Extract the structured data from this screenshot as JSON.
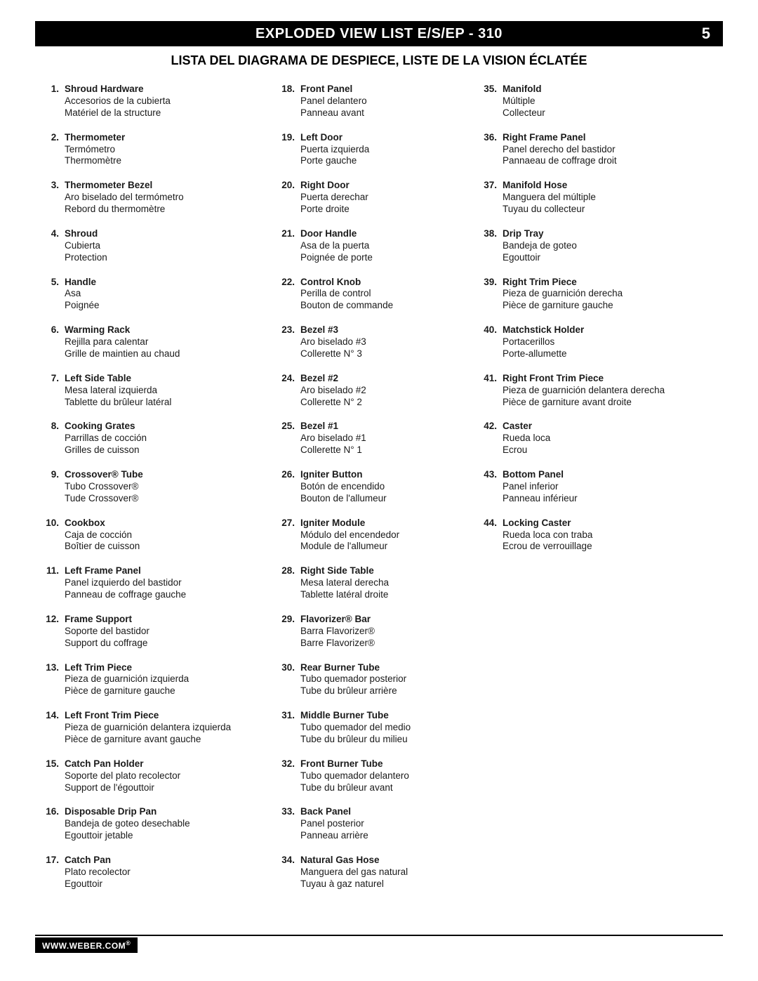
{
  "header": {
    "title": "EXPLODED VIEW LIST  E/S/EP - 310",
    "page_number": "5"
  },
  "subtitle": "LISTA DEL DIAGRAMA DE DESPIECE, LISTE DE LA VISION ÉCLATÉE",
  "footer": "WWW.WEBER.COM",
  "footer_mark": "®",
  "columns": [
    [
      {
        "n": "1.",
        "name": "Shroud Hardware",
        "es": "Accesorios de la cubierta",
        "fr": "Matériel de la structure"
      },
      {
        "n": "2.",
        "name": "Thermometer",
        "es": "Termómetro",
        "fr": "Thermomètre"
      },
      {
        "n": "3.",
        "name": "Thermometer Bezel",
        "es": "Aro biselado del termómetro",
        "fr": "Rebord du thermomètre"
      },
      {
        "n": "4.",
        "name": "Shroud",
        "es": "Cubierta",
        "fr": "Protection"
      },
      {
        "n": "5.",
        "name": "Handle",
        "es": "Asa",
        "fr": "Poignée"
      },
      {
        "n": "6.",
        "name": "Warming Rack",
        "es": "Rejilla para calentar",
        "fr": "Grille de maintien au chaud"
      },
      {
        "n": "7.",
        "name": "Left Side Table",
        "es": "Mesa lateral izquierda",
        "fr": "Tablette du brûleur latéral"
      },
      {
        "n": "8.",
        "name": "Cooking Grates",
        "es": "Parrillas de cocción",
        "fr": "Grilles de cuisson"
      },
      {
        "n": "9.",
        "name": "Crossover® Tube",
        "es": "Tubo Crossover®",
        "fr": "Tude Crossover®"
      },
      {
        "n": "10.",
        "name": "Cookbox",
        "es": "Caja de cocción",
        "fr": "Boîtier de cuisson"
      },
      {
        "n": "11.",
        "name": "Left Frame Panel",
        "es": "Panel izquierdo del bastidor",
        "fr": "Panneau de coffrage gauche"
      },
      {
        "n": "12.",
        "name": "Frame Support",
        "es": "Soporte del bastidor",
        "fr": "Support du coffrage"
      },
      {
        "n": "13.",
        "name": "Left Trim Piece",
        "es": "Pieza de guarnición izquierda",
        "fr": "Pièce de garniture gauche"
      },
      {
        "n": "14.",
        "name": "Left Front Trim Piece",
        "es": "Pieza de guarnición delantera izquierda",
        "fr": "Pièce de garniture avant gauche"
      },
      {
        "n": "15.",
        "name": "Catch Pan Holder",
        "es": "Soporte del plato recolector",
        "fr": "Support de l'égouttoir"
      },
      {
        "n": "16.",
        "name": "Disposable Drip Pan",
        "es": "Bandeja de goteo desechable",
        "fr": "Egouttoir jetable"
      },
      {
        "n": "17.",
        "name": "Catch Pan",
        "es": "Plato recolector",
        "fr": "Egouttoir"
      }
    ],
    [
      {
        "n": "18.",
        "name": "Front Panel",
        "es": "Panel delantero",
        "fr": "Panneau avant"
      },
      {
        "n": "19.",
        "name": "Left Door",
        "es": "Puerta izquierda",
        "fr": "Porte gauche"
      },
      {
        "n": "20.",
        "name": "Right Door",
        "es": "Puerta derechar",
        "fr": "Porte droite"
      },
      {
        "n": "21.",
        "name": "Door Handle",
        "es": "Asa de la puerta",
        "fr": "Poignée de porte"
      },
      {
        "n": "22.",
        "name": "Control Knob",
        "es": "Perilla de control",
        "fr": "Bouton de commande"
      },
      {
        "n": "23.",
        "name": "Bezel #3",
        "es": "Aro biselado #3",
        "fr": "Collerette N° 3"
      },
      {
        "n": "24.",
        "name": "Bezel #2",
        "es": "Aro biselado #2",
        "fr": "Collerette N° 2"
      },
      {
        "n": "25.",
        "name": "Bezel #1",
        "es": "Aro biselado #1",
        "fr": "Collerette N° 1"
      },
      {
        "n": "26.",
        "name": "Igniter Button",
        "es": "Botón de encendido",
        "fr": "Bouton de l'allumeur"
      },
      {
        "n": "27.",
        "name": "Igniter Module",
        "es": "Módulo del encendedor",
        "fr": "Module de l'allumeur"
      },
      {
        "n": "28.",
        "name": "Right Side Table",
        "es": "Mesa lateral derecha",
        "fr": "Tablette latéral droite"
      },
      {
        "n": "29.",
        "name": "Flavorizer® Bar",
        "es": "Barra Flavorizer®",
        "fr": "Barre Flavorizer®"
      },
      {
        "n": "30.",
        "name": "Rear Burner Tube",
        "es": "Tubo quemador posterior",
        "fr": "Tube du brûleur arrière"
      },
      {
        "n": "31.",
        "name": "Middle Burner Tube",
        "es": "Tubo quemador del medio",
        "fr": "Tube du brûleur du milieu"
      },
      {
        "n": "32.",
        "name": "Front Burner Tube",
        "es": "Tubo quemador delantero",
        "fr": "Tube du brûleur avant"
      },
      {
        "n": "33.",
        "name": "Back Panel",
        "es": "Panel posterior",
        "fr": "Panneau arrière"
      },
      {
        "n": "34.",
        "name": "Natural Gas Hose",
        "es": "Manguera del gas natural",
        "fr": "Tuyau à gaz naturel"
      }
    ],
    [
      {
        "n": "35.",
        "name": "Manifold",
        "es": "Múltiple",
        "fr": "Collecteur"
      },
      {
        "n": "36.",
        "name": "Right Frame Panel",
        "es": "Panel derecho del bastidor",
        "fr": "Pannaeau de coffrage droit"
      },
      {
        "n": "37.",
        "name": "Manifold Hose",
        "es": "Manguera del múltiple",
        "fr": "Tuyau du collecteur"
      },
      {
        "n": "38.",
        "name": "Drip Tray",
        "es": "Bandeja de goteo",
        "fr": "Egouttoir"
      },
      {
        "n": "39.",
        "name": "Right Trim Piece",
        "es": "Pieza de guarnición derecha",
        "fr": "Pièce de garniture gauche"
      },
      {
        "n": "40.",
        "name": "Matchstick Holder",
        "es": "Portacerillos",
        "fr": "Porte-allumette"
      },
      {
        "n": "41.",
        "name": "Right Front Trim Piece",
        "es": "Pieza de guarnición delantera derecha",
        "fr": "Pièce de garniture avant droite"
      },
      {
        "n": "42.",
        "name": "Caster",
        "es": "Rueda loca",
        "fr": "Ecrou"
      },
      {
        "n": "43.",
        "name": "Bottom Panel",
        "es": "Panel inferior",
        "fr": "Panneau inférieur"
      },
      {
        "n": "44.",
        "name": "Locking Caster",
        "es": "Rueda loca con traba",
        "fr": "Ecrou de verrouillage"
      }
    ]
  ]
}
